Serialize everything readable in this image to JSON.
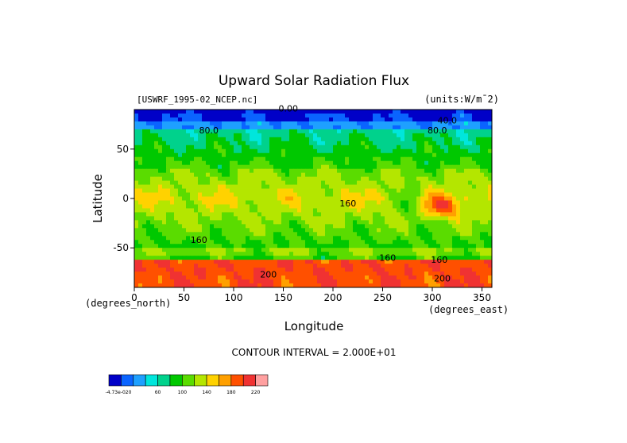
{
  "chart_data": {
    "type": "heatmap",
    "title": "Upward Solar Radiation Flux",
    "file_label": "[USWRF_1995-02_NCEP.nc]",
    "units_label": "(units:W/m¯2)",
    "xlabel": "Longitude",
    "ylabel": "Latitude",
    "x_units": "(degrees_east)",
    "y_units": "(degrees_north)",
    "xlim": [
      0,
      360
    ],
    "ylim": [
      -90,
      90
    ],
    "x_ticks": [
      0,
      50,
      100,
      150,
      200,
      250,
      300,
      350
    ],
    "y_ticks": [
      50,
      0,
      -50
    ],
    "contour_interval_text": "CONTOUR INTERVAL = 2.000E+01",
    "contour_labels": [
      "0.00",
      "40.0",
      "80.0",
      "80.0",
      "160",
      "160",
      "160",
      "200",
      "200",
      "160"
    ],
    "colorbar": {
      "tick_labels": [
        "-4.73e-020",
        "60",
        "100",
        "140",
        "180",
        "220"
      ],
      "colors": [
        "#0000c8",
        "#0a64ff",
        "#1ea0ff",
        "#00e6dc",
        "#00d28c",
        "#00c800",
        "#5adc00",
        "#b4e600",
        "#ffd200",
        "#ffa000",
        "#ff5000",
        "#f03232",
        "#ffa0a0"
      ]
    }
  }
}
